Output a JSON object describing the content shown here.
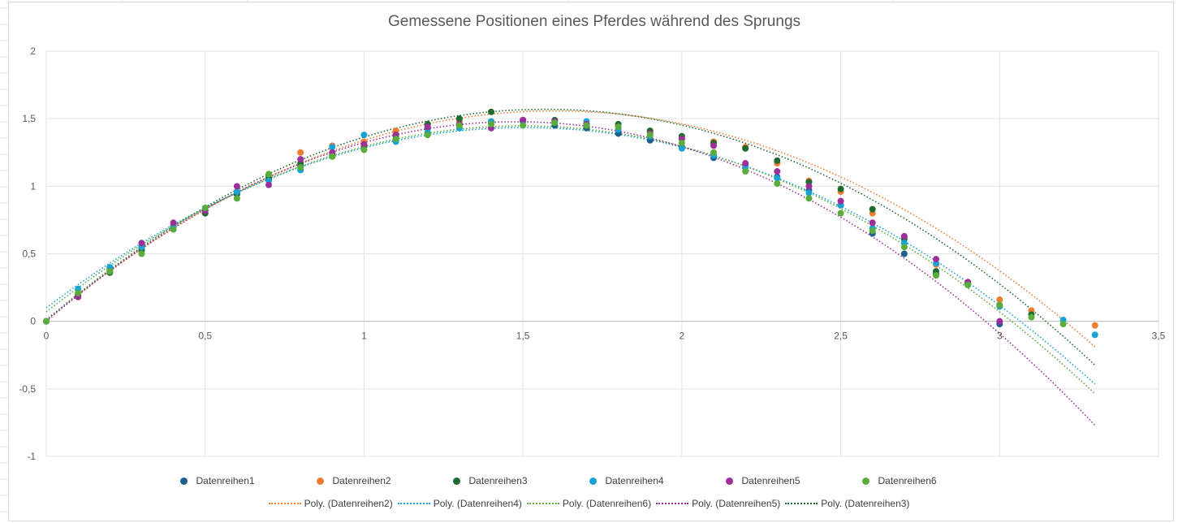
{
  "chart_data": {
    "type": "scatter",
    "title": "Gemessene Positionen eines Pferdes während des Sprungs",
    "xlabel": "",
    "ylabel": "",
    "xlim": [
      0,
      3.5
    ],
    "ylim": [
      -1,
      2
    ],
    "x_ticks": [
      0,
      0.5,
      1,
      1.5,
      2,
      2.5,
      3,
      3.5
    ],
    "x_tick_labels": [
      "0",
      "0,5",
      "1",
      "1,5",
      "2",
      "2,5",
      "3",
      "3,5"
    ],
    "y_ticks": [
      -1,
      -0.5,
      0,
      0.5,
      1,
      1.5,
      2
    ],
    "y_tick_labels": [
      "-1",
      "-0,5",
      "0",
      "0,5",
      "1",
      "1,5",
      "2"
    ],
    "grid": true,
    "legend_position": "bottom",
    "series": [
      {
        "name": "Datenreihen1",
        "color": "#1f5f8b",
        "x": [
          0,
          0.1,
          0.2,
          0.3,
          0.4,
          0.5,
          0.6,
          0.7,
          0.8,
          0.9,
          1,
          1.1,
          1.2,
          1.3,
          1.4,
          1.5,
          1.6,
          1.7,
          1.8,
          1.9,
          2,
          2.1,
          2.2,
          2.3,
          2.4,
          2.5,
          2.6,
          2.7,
          2.8,
          2.9,
          3
        ],
        "y": [
          0,
          0.2,
          0.38,
          0.55,
          0.71,
          0.8,
          0.94,
          1.05,
          1.15,
          1.25,
          1.3,
          1.37,
          1.43,
          1.45,
          1.47,
          1.48,
          1.45,
          1.43,
          1.39,
          1.34,
          1.29,
          1.21,
          1.16,
          1.07,
          0.97,
          0.86,
          0.65,
          0.5,
          0.35,
          0.27,
          -0.02
        ]
      },
      {
        "name": "Datenreihen2",
        "color": "#ed7d31",
        "x": [
          0,
          0.1,
          0.2,
          0.3,
          0.4,
          0.5,
          0.6,
          0.7,
          0.8,
          0.9,
          1,
          1.1,
          1.2,
          1.3,
          1.4,
          1.5,
          1.6,
          1.7,
          1.8,
          1.9,
          2,
          2.1,
          2.2,
          2.3,
          2.4,
          2.5,
          2.6,
          2.7,
          2.8,
          2.9,
          3,
          3.1,
          3.3
        ],
        "y": [
          0,
          0.18,
          0.37,
          0.52,
          0.7,
          0.82,
          0.96,
          1.07,
          1.25,
          1.3,
          1.33,
          1.41,
          1.44,
          1.48,
          1.48,
          1.49,
          1.48,
          1.46,
          1.45,
          1.41,
          1.37,
          1.33,
          1.29,
          1.17,
          1.04,
          0.96,
          0.8,
          0.62,
          0.42,
          0.29,
          0.16,
          0.08,
          -0.03
        ]
      },
      {
        "name": "Datenreihen3",
        "color": "#1e6b2f",
        "x": [
          0,
          0.1,
          0.2,
          0.3,
          0.4,
          0.5,
          0.6,
          0.7,
          0.8,
          0.9,
          1,
          1.1,
          1.2,
          1.3,
          1.4,
          1.5,
          1.6,
          1.7,
          1.8,
          1.9,
          2,
          2.1,
          2.2,
          2.3,
          2.4,
          2.5,
          2.6,
          2.7,
          2.8,
          2.9,
          3,
          3.1
        ],
        "y": [
          0,
          0.19,
          0.36,
          0.53,
          0.7,
          0.8,
          0.95,
          1.06,
          1.17,
          1.23,
          1.3,
          1.38,
          1.46,
          1.5,
          1.55,
          1.48,
          1.49,
          1.45,
          1.46,
          1.41,
          1.37,
          1.32,
          1.28,
          1.19,
          1.03,
          0.98,
          0.83,
          0.61,
          0.37,
          0.28,
          0.12,
          0.05
        ]
      },
      {
        "name": "Datenreihen4",
        "color": "#17a2d4",
        "x": [
          0,
          0.1,
          0.2,
          0.3,
          0.4,
          0.5,
          0.6,
          0.7,
          0.8,
          0.9,
          1,
          1.1,
          1.2,
          1.3,
          1.4,
          1.5,
          1.6,
          1.7,
          1.8,
          1.9,
          2,
          2.1,
          2.2,
          2.3,
          2.4,
          2.5,
          2.6,
          2.7,
          2.8,
          2.9,
          3,
          3.2,
          3.3
        ],
        "y": [
          0,
          0.24,
          0.4,
          0.55,
          0.7,
          0.82,
          0.96,
          1.04,
          1.12,
          1.29,
          1.38,
          1.33,
          1.4,
          1.43,
          1.48,
          1.48,
          1.47,
          1.48,
          1.42,
          1.37,
          1.28,
          1.23,
          1.14,
          1.06,
          0.95,
          0.86,
          0.69,
          0.58,
          0.43,
          0.28,
          0.11,
          0.01,
          -0.1
        ]
      },
      {
        "name": "Datenreihen5",
        "color": "#9c2f9a",
        "x": [
          0,
          0.1,
          0.2,
          0.3,
          0.4,
          0.5,
          0.6,
          0.7,
          0.8,
          0.9,
          1,
          1.1,
          1.2,
          1.3,
          1.4,
          1.5,
          1.6,
          1.7,
          1.8,
          1.9,
          2,
          2.1,
          2.2,
          2.3,
          2.4,
          2.5,
          2.6,
          2.7,
          2.8,
          2.9,
          3
        ],
        "y": [
          0,
          0.18,
          0.37,
          0.58,
          0.73,
          0.82,
          1.0,
          1.01,
          1.2,
          1.25,
          1.31,
          1.38,
          1.44,
          1.46,
          1.43,
          1.49,
          1.48,
          1.46,
          1.44,
          1.39,
          1.35,
          1.3,
          1.17,
          1.11,
          1.0,
          0.89,
          0.73,
          0.63,
          0.46,
          0.29,
          0.0
        ]
      },
      {
        "name": "Datenreihen6",
        "color": "#5aad3a",
        "x": [
          0,
          0.1,
          0.2,
          0.3,
          0.4,
          0.5,
          0.6,
          0.7,
          0.8,
          0.9,
          1,
          1.1,
          1.2,
          1.3,
          1.4,
          1.5,
          1.6,
          1.7,
          1.8,
          1.9,
          2,
          2.1,
          2.2,
          2.3,
          2.4,
          2.5,
          2.6,
          2.7,
          2.8,
          2.9,
          3,
          3.1,
          3.2
        ],
        "y": [
          0,
          0.21,
          0.37,
          0.5,
          0.68,
          0.84,
          0.91,
          1.09,
          1.14,
          1.22,
          1.27,
          1.35,
          1.38,
          1.45,
          1.46,
          1.45,
          1.47,
          1.45,
          1.44,
          1.38,
          1.32,
          1.25,
          1.11,
          1.02,
          0.91,
          0.8,
          0.67,
          0.55,
          0.34,
          0.27,
          0.12,
          0.03,
          -0.02
        ]
      }
    ],
    "trendlines": [
      {
        "name": "Poly. (Datenreihen2)",
        "color": "#ed7d31",
        "a": -0.6045,
        "b": 1.9348,
        "c": 0.01,
        "x_end": 3.3
      },
      {
        "name": "Poly. (Datenreihen4)",
        "color": "#17a2d4",
        "a": -0.5893,
        "b": 1.7737,
        "c": 0.1,
        "x_end": 3.3
      },
      {
        "name": "Poly. (Datenreihen6)",
        "color": "#5aad3a",
        "a": -0.6119,
        "b": 1.8358,
        "c": 0.07,
        "x_end": 3.3
      },
      {
        "name": "Poly. (Datenreihen5)",
        "color": "#9c2f9a",
        "a": -0.6767,
        "b": 2.0,
        "c": 0.0,
        "x_end": 3.3
      },
      {
        "name": "Poly. (Datenreihen3)",
        "color": "#1e6b2f",
        "a": -0.6327,
        "b": 1.9868,
        "c": 0.01,
        "x_end": 3.3
      }
    ]
  }
}
